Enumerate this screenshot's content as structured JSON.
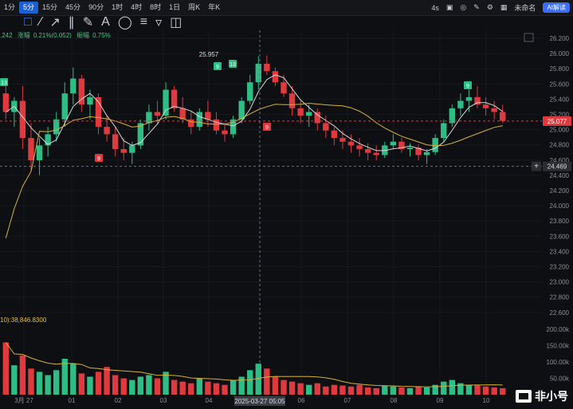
{
  "toolbar": {
    "intervals": [
      "1分",
      "5分",
      "15分",
      "45分",
      "90分",
      "1时",
      "4时",
      "8时",
      "1日",
      "周K",
      "年K"
    ],
    "active_interval": "5分",
    "countdown": "4s",
    "watchlist_label": "未命名",
    "ai_label": "AI解读"
  },
  "stats": {
    "price_fragment": ".242",
    "change_label": "涨幅",
    "change_value": "0.21%(0.052)",
    "amp_label": "振幅",
    "amp_value": "0.75%"
  },
  "volume_label": "10):38,846.8300",
  "price_axis": [
    "26.200",
    "26.000",
    "25.800",
    "25.600",
    "25.400",
    "25.200",
    "25.000",
    "24.800",
    "24.600",
    "24.400",
    "24.200",
    "24.000",
    "23.800",
    "23.600",
    "23.400",
    "23.200",
    "23.000",
    "22.800",
    "22.600"
  ],
  "volume_axis": [
    "200.00k",
    "150.00k",
    "100.00k",
    "50.00k"
  ],
  "date_axis": [
    "3月 27",
    "01",
    "02",
    "03",
    "04",
    "06",
    "07",
    "08",
    "09",
    "10"
  ],
  "crosshair_date": "2025-03-27 05:05",
  "current_price": "25.077",
  "crosshair_price": "24.469",
  "high_label": "25.957",
  "markers": [
    {
      "text": "13",
      "kind": "green"
    },
    {
      "text": "9",
      "kind": "red"
    },
    {
      "text": "9",
      "kind": "green"
    },
    {
      "text": "13",
      "kind": "green"
    },
    {
      "text": "9",
      "kind": "red"
    },
    {
      "text": "9",
      "kind": "green"
    }
  ],
  "watermark": "非小号",
  "colors": {
    "up": "#2ebd85",
    "down": "#e0393e",
    "ma_white": "#d8d8d8",
    "ma_yellow": "#d4b23a",
    "accent": "#1b5fd1"
  },
  "chart_data": {
    "type": "candlestick",
    "ylim": [
      22.5,
      26.3
    ],
    "ohlc": [
      [
        25.45,
        25.6,
        25.1,
        25.2
      ],
      [
        25.2,
        25.4,
        25.0,
        25.35
      ],
      [
        25.35,
        25.55,
        24.7,
        24.85
      ],
      [
        24.85,
        25.05,
        24.4,
        24.55
      ],
      [
        24.55,
        24.85,
        24.35,
        24.75
      ],
      [
        24.75,
        25.0,
        24.6,
        24.9
      ],
      [
        24.9,
        25.2,
        24.8,
        25.1
      ],
      [
        25.1,
        25.6,
        25.0,
        25.45
      ],
      [
        25.45,
        25.8,
        25.3,
        25.65
      ],
      [
        25.65,
        25.7,
        25.2,
        25.3
      ],
      [
        25.3,
        25.5,
        25.1,
        25.4
      ],
      [
        25.4,
        25.45,
        24.9,
        25.0
      ],
      [
        25.0,
        25.15,
        24.8,
        24.9
      ],
      [
        24.9,
        25.0,
        24.6,
        24.7
      ],
      [
        24.7,
        24.85,
        24.55,
        24.65
      ],
      [
        24.65,
        24.8,
        24.5,
        24.75
      ],
      [
        24.75,
        25.1,
        24.7,
        25.05
      ],
      [
        25.05,
        25.3,
        24.95,
        25.2
      ],
      [
        25.2,
        25.35,
        25.05,
        25.15
      ],
      [
        25.15,
        25.6,
        25.1,
        25.5
      ],
      [
        25.5,
        25.55,
        25.2,
        25.25
      ],
      [
        25.25,
        25.4,
        25.05,
        25.1
      ],
      [
        25.1,
        25.2,
        24.9,
        25.0
      ],
      [
        25.0,
        25.25,
        24.95,
        25.2
      ],
      [
        25.2,
        25.35,
        25.0,
        25.1
      ],
      [
        25.1,
        25.2,
        24.9,
        24.95
      ],
      [
        24.95,
        25.05,
        24.8,
        24.9
      ],
      [
        24.9,
        25.15,
        24.85,
        25.1
      ],
      [
        25.1,
        25.4,
        25.05,
        25.35
      ],
      [
        25.35,
        25.7,
        25.3,
        25.6
      ],
      [
        25.6,
        25.95,
        25.5,
        25.85
      ],
      [
        25.85,
        25.96,
        25.7,
        25.75
      ],
      [
        25.75,
        25.8,
        25.55,
        25.6
      ],
      [
        25.6,
        25.7,
        25.4,
        25.45
      ],
      [
        25.45,
        25.55,
        25.15,
        25.25
      ],
      [
        25.25,
        25.35,
        25.05,
        25.15
      ],
      [
        25.15,
        25.3,
        25.0,
        25.2
      ],
      [
        25.2,
        25.25,
        24.95,
        25.05
      ],
      [
        25.05,
        25.15,
        24.85,
        24.95
      ],
      [
        24.95,
        25.0,
        24.75,
        24.85
      ],
      [
        24.85,
        24.95,
        24.7,
        24.8
      ],
      [
        24.8,
        24.9,
        24.65,
        24.75
      ],
      [
        24.75,
        24.85,
        24.6,
        24.7
      ],
      [
        24.7,
        24.78,
        24.55,
        24.65
      ],
      [
        24.65,
        24.75,
        24.55,
        24.62
      ],
      [
        24.62,
        24.8,
        24.58,
        24.75
      ],
      [
        24.75,
        24.9,
        24.7,
        24.8
      ],
      [
        24.8,
        24.85,
        24.65,
        24.7
      ],
      [
        24.7,
        24.78,
        24.6,
        24.72
      ],
      [
        24.72,
        24.76,
        24.55,
        24.62
      ],
      [
        24.62,
        24.7,
        24.5,
        24.66
      ],
      [
        24.66,
        24.9,
        24.62,
        24.85
      ],
      [
        24.85,
        25.1,
        24.8,
        25.05
      ],
      [
        25.05,
        25.3,
        25.0,
        25.25
      ],
      [
        25.25,
        25.45,
        25.15,
        25.35
      ],
      [
        25.35,
        25.5,
        25.2,
        25.4
      ],
      [
        25.4,
        25.55,
        25.25,
        25.3
      ],
      [
        25.3,
        25.4,
        25.15,
        25.25
      ],
      [
        25.25,
        25.35,
        25.1,
        25.2
      ],
      [
        25.2,
        25.3,
        25.05,
        25.08
      ]
    ],
    "volume": [
      160,
      90,
      120,
      80,
      70,
      60,
      75,
      110,
      95,
      65,
      55,
      70,
      85,
      60,
      50,
      45,
      55,
      60,
      50,
      70,
      45,
      40,
      35,
      50,
      40,
      35,
      30,
      45,
      55,
      75,
      95,
      80,
      55,
      45,
      40,
      35,
      30,
      35,
      25,
      30,
      28,
      25,
      30,
      22,
      20,
      28,
      25,
      22,
      20,
      25,
      22,
      30,
      40,
      45,
      35,
      30,
      28,
      25,
      22,
      20
    ]
  }
}
